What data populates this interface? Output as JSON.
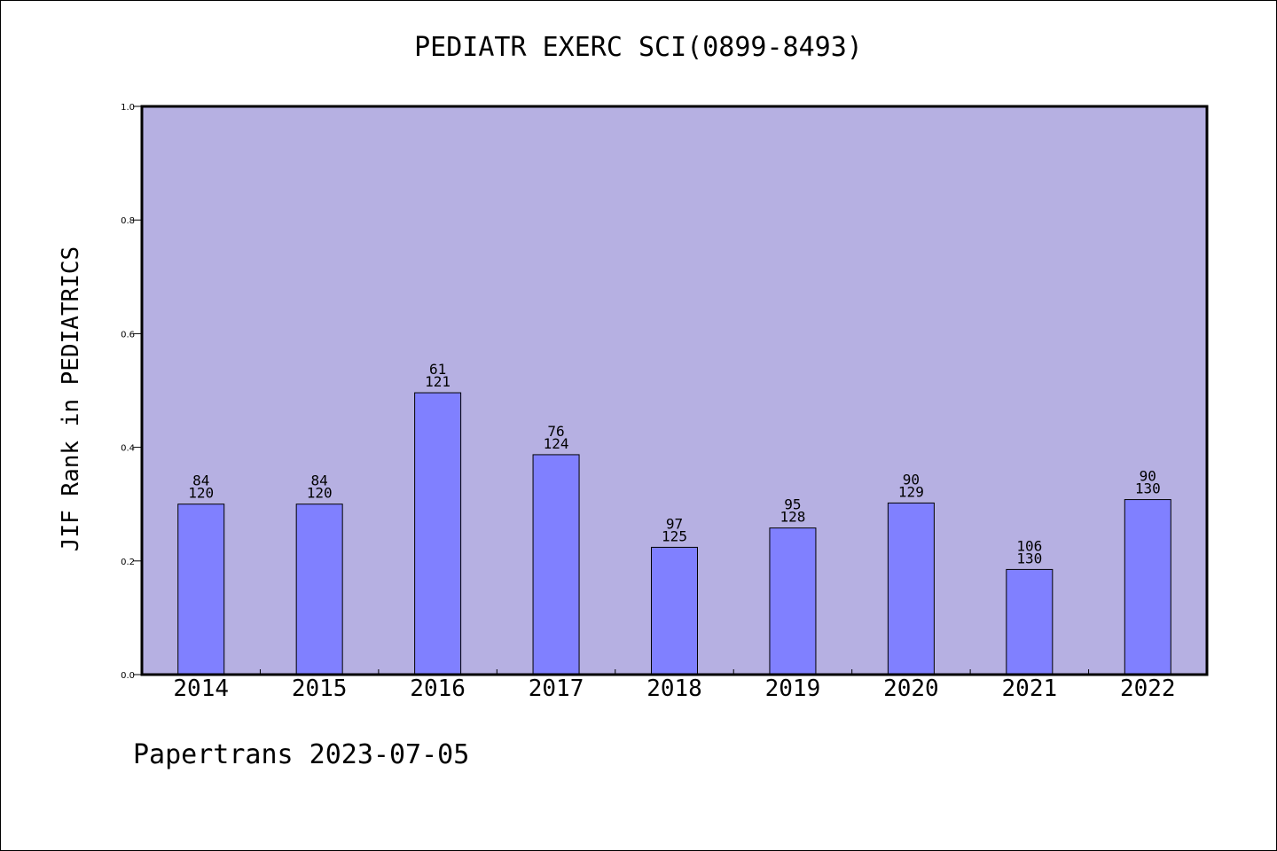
{
  "chart_data": {
    "type": "bar",
    "title": "PEDIATR EXERC SCI(0899-8493)",
    "ylabel": "JIF Rank in PEDIATRICS",
    "xlabel": "",
    "ylim": [
      0,
      1.0
    ],
    "yticks": [
      "0.0",
      "0.2",
      "0.4",
      "0.6",
      "0.8",
      "1.0"
    ],
    "categories": [
      "2014",
      "2015",
      "2016",
      "2017",
      "2018",
      "2019",
      "2020",
      "2021",
      "2022"
    ],
    "values": [
      0.3,
      0.3,
      0.496,
      0.387,
      0.224,
      0.258,
      0.302,
      0.185,
      0.308
    ],
    "ranks": [
      "84",
      "84",
      "61",
      "76",
      "97",
      "95",
      "90",
      "106",
      "90"
    ],
    "totals": [
      "120",
      "120",
      "121",
      "124",
      "125",
      "128",
      "129",
      "130",
      "130"
    ],
    "grid": false,
    "colors": {
      "plot_background": "#b6b0e2",
      "bar_fill": "#8080ff",
      "bar_stroke": "#000000"
    }
  },
  "footer": "Papertrans 2023-07-05"
}
